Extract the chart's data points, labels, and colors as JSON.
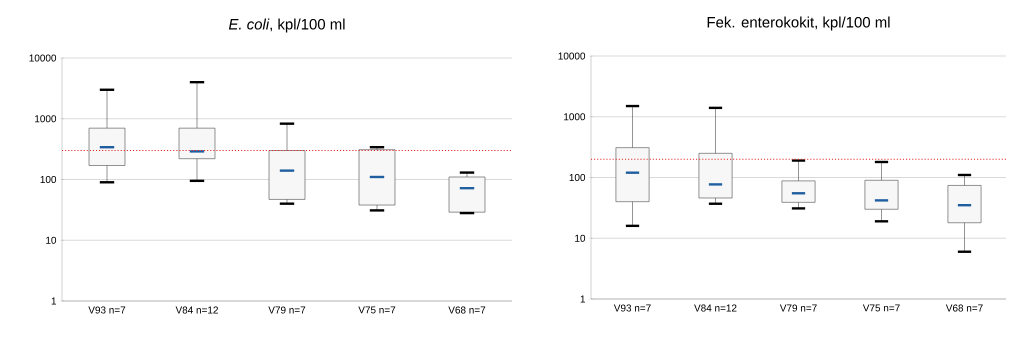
{
  "chart_data": [
    {
      "type": "box",
      "title": "*E. coli*, kpl/100 ml",
      "categories": [
        "V93 n=7",
        "V84 n=12",
        "V79 n=7",
        "V75 n=7",
        "V68 n=7"
      ],
      "boxes": [
        {
          "low": 90,
          "q1": 170,
          "median": 340,
          "q3": 700,
          "high": 3000
        },
        {
          "low": 95,
          "q1": 220,
          "median": 290,
          "q3": 700,
          "high": 4000
        },
        {
          "low": 40,
          "q1": 47,
          "median": 140,
          "q3": 300,
          "high": 830
        },
        {
          "low": 31,
          "q1": 38,
          "median": 110,
          "q3": 310,
          "high": 340
        },
        {
          "low": 28,
          "q1": 29,
          "median": 72,
          "q3": 110,
          "high": 130
        }
      ],
      "ylim": [
        1,
        10000
      ],
      "yticks": [
        1,
        10,
        100,
        1000,
        10000
      ],
      "log": true,
      "grid": "y",
      "ref_lines": [
        {
          "axis": "y",
          "value": 300,
          "color": "#e02020",
          "line_style": "dotted"
        }
      ]
    },
    {
      "type": "box",
      "title": "Fek. enterokokit, kpl/100 ml",
      "categories": [
        "V93 n=7",
        "V84 n=12",
        "V79 n=7",
        "V75 n=7",
        "V68 n=7"
      ],
      "boxes": [
        {
          "low": 16,
          "q1": 40,
          "median": 120,
          "q3": 310,
          "high": 1500
        },
        {
          "low": 37,
          "q1": 46,
          "median": 77,
          "q3": 250,
          "high": 1400
        },
        {
          "low": 31,
          "q1": 39,
          "median": 55,
          "q3": 88,
          "high": 190
        },
        {
          "low": 19,
          "q1": 30,
          "median": 42,
          "q3": 90,
          "high": 180
        },
        {
          "low": 6,
          "q1": 18,
          "median": 35,
          "q3": 74,
          "high": 110
        }
      ],
      "ylim": [
        1,
        10000
      ],
      "yticks": [
        1,
        10,
        100,
        1000,
        10000
      ],
      "log": true,
      "grid": "y",
      "ref_lines": [
        {
          "axis": "y",
          "value": 200,
          "color": "#e02020",
          "line_style": "dotted"
        }
      ]
    }
  ]
}
